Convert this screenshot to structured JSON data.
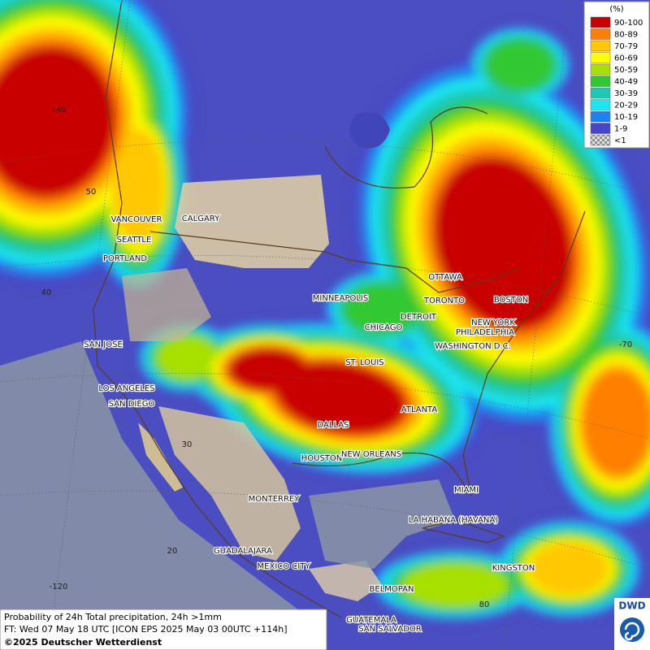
{
  "legend": {
    "title": "(%)",
    "items": [
      {
        "label": "90-100",
        "color": "#c80000"
      },
      {
        "label": "80-89",
        "color": "#ff7f00"
      },
      {
        "label": "70-79",
        "color": "#ffc800"
      },
      {
        "label": "60-69",
        "color": "#ffff00"
      },
      {
        "label": "50-59",
        "color": "#a8e000"
      },
      {
        "label": "40-49",
        "color": "#32c832"
      },
      {
        "label": "30-39",
        "color": "#1ec8b4"
      },
      {
        "label": "20-29",
        "color": "#1ee6f0"
      },
      {
        "label": "10-19",
        "color": "#1e82f0"
      },
      {
        "label": "1-9",
        "color": "#4646c8"
      },
      {
        "label": "<1",
        "color": "#b0b0b0"
      }
    ]
  },
  "cities": [
    "VANCOUVER",
    "CALGARY",
    "SEATTLE",
    "PORTLAND",
    "MINNEAPOLIS",
    "OTTAWA",
    "TORONTO",
    "DETROIT",
    "BOSTON",
    "NEW YORK",
    "PHILADELPHIA",
    "CHICAGO",
    "WASHINGTON D.C.",
    "SAN JOSE",
    "ST. LOUIS",
    "LOS ANGELES",
    "SAN DIEGO",
    "ATLANTA",
    "DALLAS",
    "HOUSTON",
    "NEW ORLEANS",
    "MIAMI",
    "MONTERREY",
    "LA HABANA (HAVANA)",
    "GUADALAJARA",
    "MEXICO CITY",
    "BELMOPAN",
    "KINGSTON",
    "GUATEMALA",
    "SAN SALVADOR"
  ],
  "graticule_labels": [
    "140",
    "50",
    "40",
    "30",
    "20",
    "-120",
    "80",
    "-70"
  ],
  "footer": {
    "line1": "Probability of 24h Total precipitation, 24h >1mm",
    "line2": "FT: Wed 07 May 18 UTC [ICON EPS 2025 May 03 00UTC +114h]",
    "line3": "©2025 Deutscher Wetterdienst"
  },
  "logo": "DWD"
}
